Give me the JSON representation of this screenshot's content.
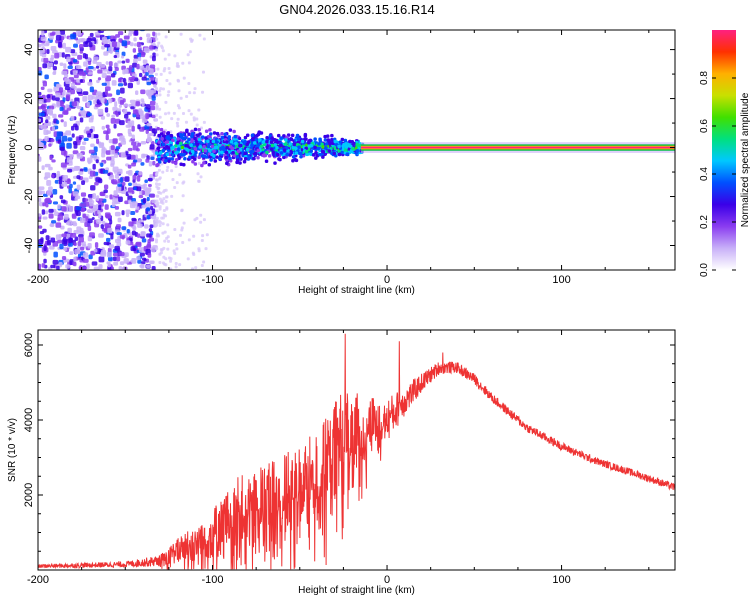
{
  "title": "GN04.2026.033.15.16.R14",
  "chart_data": [
    {
      "type": "heatmap",
      "name": "spectrogram",
      "xlabel": "Height of straight line (km)",
      "ylabel": "Frequency (Hz)",
      "xlim": [
        -200,
        165
      ],
      "ylim": [
        -50,
        48
      ],
      "xticks": [
        -200,
        -100,
        0,
        100
      ],
      "yticks": [
        40,
        20,
        0,
        -20,
        -40
      ],
      "colorbar": {
        "label": "Normalized spectral amplitude",
        "range": [
          0.0,
          1.0
        ],
        "ticks": [
          "0.0",
          "0.2",
          "0.4",
          "0.6",
          "0.8"
        ],
        "colors": [
          "#ffffff",
          "#c8b0f8",
          "#8a3cf0",
          "#3a00e8",
          "#0050ff",
          "#00c8ff",
          "#00e080",
          "#40e000",
          "#c8e000",
          "#ffb000",
          "#ff3000",
          "#ff2080"
        ]
      },
      "features": {
        "noise_region_km": [
          -200,
          -133
        ],
        "transition_km": [
          -133,
          -15
        ],
        "carrier_freq_hz": 0,
        "carrier_amplitude": 1.0,
        "carrier_start_km": -15
      }
    },
    {
      "type": "line",
      "name": "snr",
      "xlabel": "Height of straight line (km)",
      "ylabel": "SNR (10 * v/v)",
      "xlim": [
        -200,
        165
      ],
      "ylim": [
        0,
        6400
      ],
      "xticks": [
        -200,
        -100,
        0,
        100
      ],
      "yticks": [
        2000,
        4000,
        6000
      ],
      "color": "#ee3333",
      "series": [
        {
          "name": "SNR",
          "envelope_x": [
            -200,
            -150,
            -130,
            -120,
            -100,
            -85,
            -70,
            -55,
            -40,
            -30,
            -25,
            -20,
            -10,
            0,
            10,
            20,
            30,
            40,
            50,
            60,
            80,
            100,
            120,
            140,
            165
          ],
          "envelope_y": [
            100,
            150,
            250,
            500,
            900,
            1400,
            1600,
            1900,
            2300,
            2800,
            3200,
            3300,
            3700,
            4000,
            4500,
            5000,
            5400,
            5400,
            5100,
            4600,
            3800,
            3300,
            2900,
            2600,
            2200
          ],
          "noise_amplitude": [
            50,
            80,
            150,
            350,
            700,
            1100,
            1200,
            1300,
            1400,
            1700,
            1700,
            1500,
            900,
            600,
            400,
            250,
            180,
            150,
            140,
            130,
            120,
            110,
            100,
            100,
            100
          ],
          "peaks": [
            {
              "x": -24,
              "y": 6300
            },
            {
              "x": 7,
              "y": 6100
            },
            {
              "x": 32,
              "y": 5800
            }
          ]
        }
      ]
    }
  ]
}
